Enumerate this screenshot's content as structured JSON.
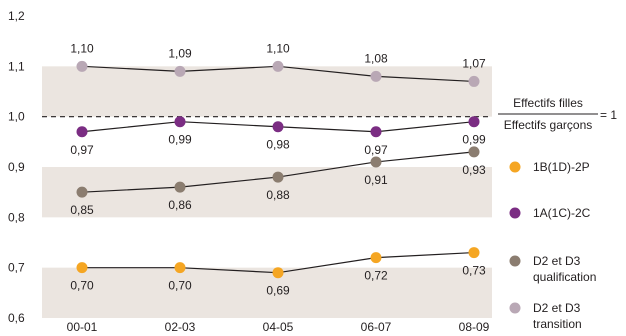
{
  "chart_data": {
    "type": "line",
    "categories": [
      "00-01",
      "02-03",
      "04-05",
      "06-07",
      "08-09"
    ],
    "y_ticks": [
      "1,2",
      "1,1",
      "1,0",
      "0,9",
      "0,8",
      "0,7",
      "0,6"
    ],
    "ylim": [
      0.6,
      1.2
    ],
    "series": [
      {
        "name": "1B(1D)-2P",
        "color": "#f5a623",
        "values": [
          0.7,
          0.7,
          0.69,
          0.72,
          0.73
        ],
        "labels": [
          "0,70",
          "0,70",
          "0,69",
          "0,72",
          "0,73"
        ]
      },
      {
        "name": "1A(1C)-2C",
        "color": "#7b2d83",
        "values": [
          0.97,
          0.99,
          0.98,
          0.97,
          0.99
        ],
        "labels": [
          "0,97",
          "0,99",
          "0,98",
          "0,97",
          "0,99"
        ]
      },
      {
        "name": "D2 et D3 qualification",
        "legend_lines": [
          "D2 et D3",
          "qualification"
        ],
        "color": "#8b7d70",
        "values": [
          0.85,
          0.86,
          0.88,
          0.91,
          0.93
        ],
        "labels": [
          "0,85",
          "0,86",
          "0,88",
          "0,91",
          "0,93"
        ]
      },
      {
        "name": "D2 et D3 transition",
        "legend_lines": [
          "D2 et D3",
          "transition"
        ],
        "color": "#b9a8b5",
        "values": [
          1.1,
          1.09,
          1.1,
          1.08,
          1.07
        ],
        "labels": [
          "1,10",
          "1,09",
          "1,10",
          "1,08",
          "1,07"
        ]
      }
    ],
    "reference": {
      "value": 1.0,
      "numerator": "Effectifs filles",
      "denominator": "Effectifs garçons",
      "equals": "= 1"
    },
    "bands": [
      [
        0.6,
        0.7
      ],
      [
        0.8,
        0.9
      ],
      [
        1.0,
        1.1
      ]
    ],
    "band_color": "#ebe5e0",
    "grid": false,
    "legend_position": "right"
  }
}
